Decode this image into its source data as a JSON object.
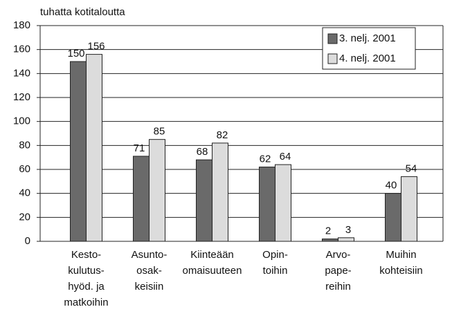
{
  "chart_data": {
    "type": "bar",
    "ylabel": "tuhatta kotitaloutta",
    "categories": [
      [
        "Kesto-",
        "kulutus-",
        "hyöd. ja",
        "matkoihin"
      ],
      [
        "Asunto-",
        "osak-",
        "keisiin"
      ],
      [
        "Kiinteään",
        "omaisuuteen"
      ],
      [
        "Opin-",
        "toihin"
      ],
      [
        "Arvo-",
        "pape-",
        "reihin"
      ],
      [
        "Muihin",
        "kohteisiin"
      ]
    ],
    "series": [
      {
        "name": "3. nelj. 2001",
        "color": "#6a6a6a",
        "values": [
          150,
          71,
          68,
          62,
          2,
          40
        ]
      },
      {
        "name": "4. nelj. 2001",
        "color": "#dcdcdc",
        "values": [
          156,
          85,
          82,
          64,
          3,
          54
        ]
      }
    ],
    "ylim": [
      0,
      180
    ],
    "yticks": [
      0,
      20,
      40,
      60,
      80,
      100,
      120,
      140,
      160,
      180
    ],
    "grid": true,
    "legend": "top-right"
  }
}
